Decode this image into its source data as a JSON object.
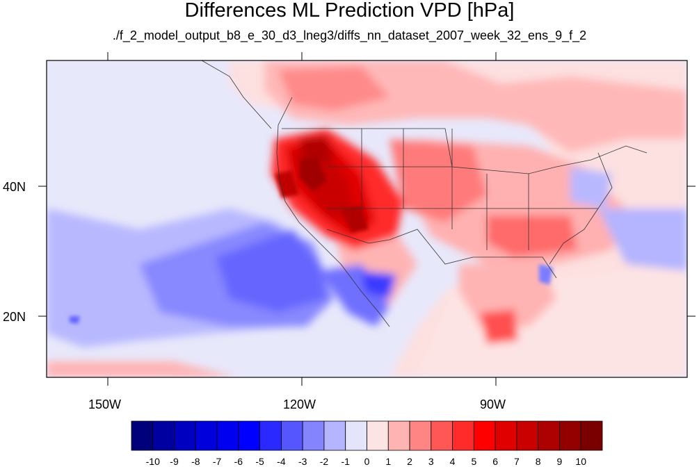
{
  "title": "Differences ML Prediction VPD [hPa]",
  "subtitle": "./f_2_model_output_b8_e_30_d3_lneg3/diffs_nn_dataset_2007_week_32_ens_9_f_2",
  "axes": {
    "x_tick_labels": [
      "150W",
      "120W",
      "90W"
    ],
    "y_tick_labels": [
      "40N",
      "20N"
    ]
  },
  "colorbar": {
    "labels": [
      "-10",
      "-9",
      "-8",
      "-7",
      "-6",
      "-5",
      "-4",
      "-3",
      "-2",
      "-1",
      "0",
      "1",
      "2",
      "3",
      "4",
      "5",
      "6",
      "7",
      "8",
      "9",
      "10"
    ],
    "colors": [
      "#00007a",
      "#0000a0",
      "#0000c0",
      "#0000dc",
      "#0000f0",
      "#0000ff",
      "#2a2aff",
      "#5656ff",
      "#8484ff",
      "#b4b4ff",
      "#e4e4fa",
      "#fde4e4",
      "#ffb4b4",
      "#ff8484",
      "#ff5656",
      "#ff2a2a",
      "#ff0000",
      "#e00000",
      "#c80000",
      "#ad0000",
      "#920000",
      "#7a0000"
    ]
  }
}
